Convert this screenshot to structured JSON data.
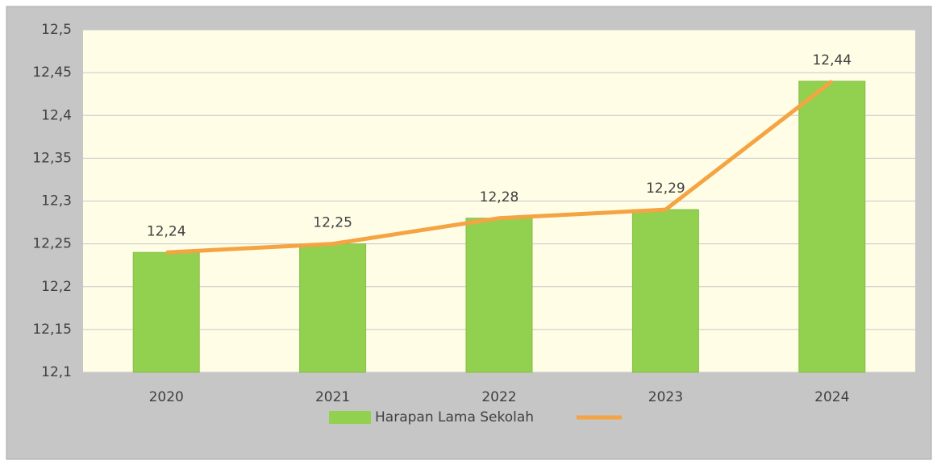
{
  "chart_data": {
    "type": "bar",
    "categories": [
      "2020",
      "2021",
      "2022",
      "2023",
      "2024"
    ],
    "series": [
      {
        "name": "Harapan Lama Sekolah",
        "type": "bar",
        "color": "#92d050",
        "values": [
          12.24,
          12.25,
          12.28,
          12.29,
          12.44
        ],
        "value_labels": [
          "12,24",
          "12,25",
          "12,28",
          "12,29",
          "12,44"
        ]
      },
      {
        "type": "line",
        "color": "#f4a442",
        "values": [
          12.24,
          12.25,
          12.28,
          12.29,
          12.44
        ]
      }
    ],
    "ylim": [
      12.1,
      12.5
    ],
    "yticks": [
      {
        "value": 12.1,
        "label": "12,1"
      },
      {
        "value": 12.15,
        "label": "12,15"
      },
      {
        "value": 12.2,
        "label": "12,2"
      },
      {
        "value": 12.25,
        "label": "12,25"
      },
      {
        "value": 12.3,
        "label": "12,3"
      },
      {
        "value": 12.35,
        "label": "12,35"
      },
      {
        "value": 12.4,
        "label": "12,4"
      },
      {
        "value": 12.45,
        "label": "12,45"
      },
      {
        "value": 12.5,
        "label": "12,5"
      }
    ],
    "grid": true,
    "legend": "bottom"
  }
}
